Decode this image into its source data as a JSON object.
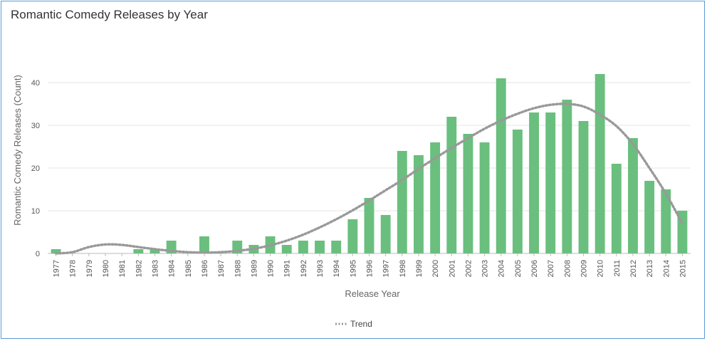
{
  "chart_data": {
    "type": "bar",
    "title": "Romantic Comedy Releases by Year",
    "xlabel": "Release Year",
    "ylabel": "Romantic Comedy Releases (Count)",
    "ylim": [
      0,
      45
    ],
    "yticks": [
      0,
      10,
      20,
      30,
      40
    ],
    "grid": true,
    "legend_position": "bottom-center",
    "categories": [
      "1977",
      "1978",
      "1979",
      "1980",
      "1981",
      "1982",
      "1983",
      "1984",
      "1985",
      "1986",
      "1987",
      "1988",
      "1989",
      "1990",
      "1991",
      "1992",
      "1993",
      "1994",
      "1995",
      "1996",
      "1997",
      "1998",
      "1999",
      "2000",
      "2001",
      "2002",
      "2003",
      "2004",
      "2005",
      "2006",
      "2007",
      "2008",
      "2009",
      "2010",
      "2011",
      "2012",
      "2013",
      "2014",
      "2015"
    ],
    "series": [
      {
        "type": "bar",
        "color": "#6abf7e",
        "values": [
          1,
          0,
          0,
          0,
          0,
          1,
          1,
          3,
          0,
          4,
          0,
          3,
          2,
          4,
          2,
          3,
          3,
          3,
          8,
          13,
          9,
          24,
          23,
          26,
          32,
          28,
          26,
          41,
          29,
          33,
          33,
          36,
          31,
          42,
          21,
          27,
          17,
          15,
          10
        ]
      },
      {
        "name": "Trend",
        "type": "line",
        "style": "dotted",
        "color": "#999999",
        "values": [
          -1.5,
          0.3,
          1.5,
          2.1,
          2.0,
          1.5,
          1.0,
          0.6,
          0.3,
          0.2,
          0.3,
          0.6,
          1.1,
          1.9,
          3.0,
          4.4,
          6.1,
          8.0,
          10.1,
          12.4,
          14.8,
          17.2,
          19.8,
          22.3,
          24.7,
          27.0,
          29.2,
          31.1,
          32.7,
          34.0,
          34.8,
          35.0,
          34.4,
          32.5,
          29.8,
          25.6,
          20.0,
          14.0,
          7.0
        ]
      }
    ]
  }
}
